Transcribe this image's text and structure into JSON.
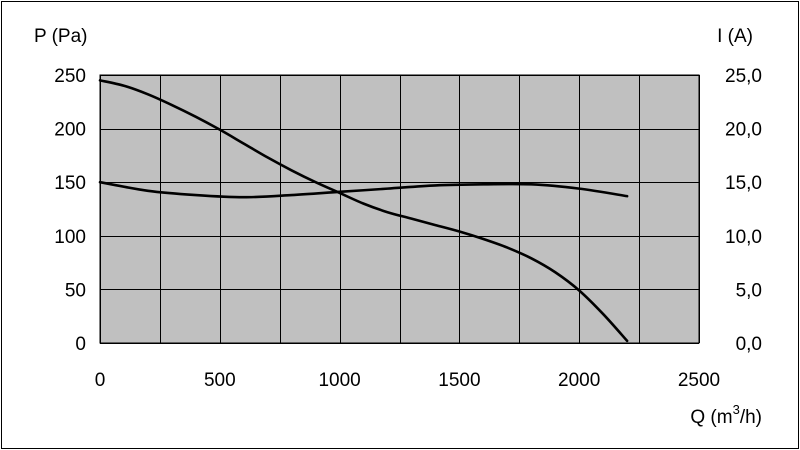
{
  "chart_data": {
    "type": "line",
    "title": "",
    "xlabel": "Q (m3/h)",
    "xlabel_parts": {
      "base": "Q (m",
      "sup": "3",
      "tail": "/h)"
    },
    "ylabel_left": "P (Pa)",
    "ylabel_right": "I (A)",
    "xlim": [
      0,
      2500
    ],
    "ylim_left": [
      0,
      250
    ],
    "ylim_right": [
      0,
      25
    ],
    "x_ticks": [
      0,
      250,
      500,
      750,
      1000,
      1250,
      1500,
      1750,
      2000,
      2250,
      2500
    ],
    "x_tick_labels": [
      {
        "value": 0,
        "label": "0"
      },
      {
        "value": 500,
        "label": "500"
      },
      {
        "value": 1000,
        "label": "1000"
      },
      {
        "value": 1500,
        "label": "1500"
      },
      {
        "value": 2000,
        "label": "2000"
      },
      {
        "value": 2500,
        "label": "2500"
      }
    ],
    "y_left_ticks": [
      {
        "value": 0,
        "label": "0"
      },
      {
        "value": 50,
        "label": "50"
      },
      {
        "value": 100,
        "label": "100"
      },
      {
        "value": 150,
        "label": "150"
      },
      {
        "value": 200,
        "label": "200"
      },
      {
        "value": 250,
        "label": "250"
      }
    ],
    "y_right_ticks": [
      {
        "value": 0,
        "label": "0,0"
      },
      {
        "value": 5,
        "label": "5,0"
      },
      {
        "value": 10,
        "label": "10,0"
      },
      {
        "value": 15,
        "label": "15,0"
      },
      {
        "value": 20,
        "label": "20,0"
      },
      {
        "value": 25,
        "label": "25,0"
      }
    ],
    "grid": true,
    "legend": "none",
    "colors": {
      "plot_background": "#c0c0c0",
      "line": "#000000",
      "grid": "#000000"
    },
    "series": [
      {
        "axis": "left",
        "x": [
          0,
          100,
          200,
          300,
          400,
          500,
          600,
          700,
          800,
          900,
          1000,
          1100,
          1200,
          1300,
          1400,
          1500,
          1600,
          1700,
          1800,
          1900,
          2000,
          2100,
          2200
        ],
        "values": [
          245,
          240,
          232,
          222,
          211,
          199,
          186,
          173,
          161,
          150,
          140,
          130,
          122,
          116,
          110,
          104,
          97,
          89,
          79,
          66,
          49,
          27,
          2
        ]
      },
      {
        "axis": "right",
        "x": [
          0,
          200,
          400,
          600,
          800,
          1000,
          1200,
          1400,
          1600,
          1800,
          2000,
          2200
        ],
        "values": [
          15.0,
          14.2,
          13.8,
          13.6,
          13.8,
          14.1,
          14.4,
          14.7,
          14.8,
          14.8,
          14.4,
          13.7
        ]
      }
    ]
  }
}
